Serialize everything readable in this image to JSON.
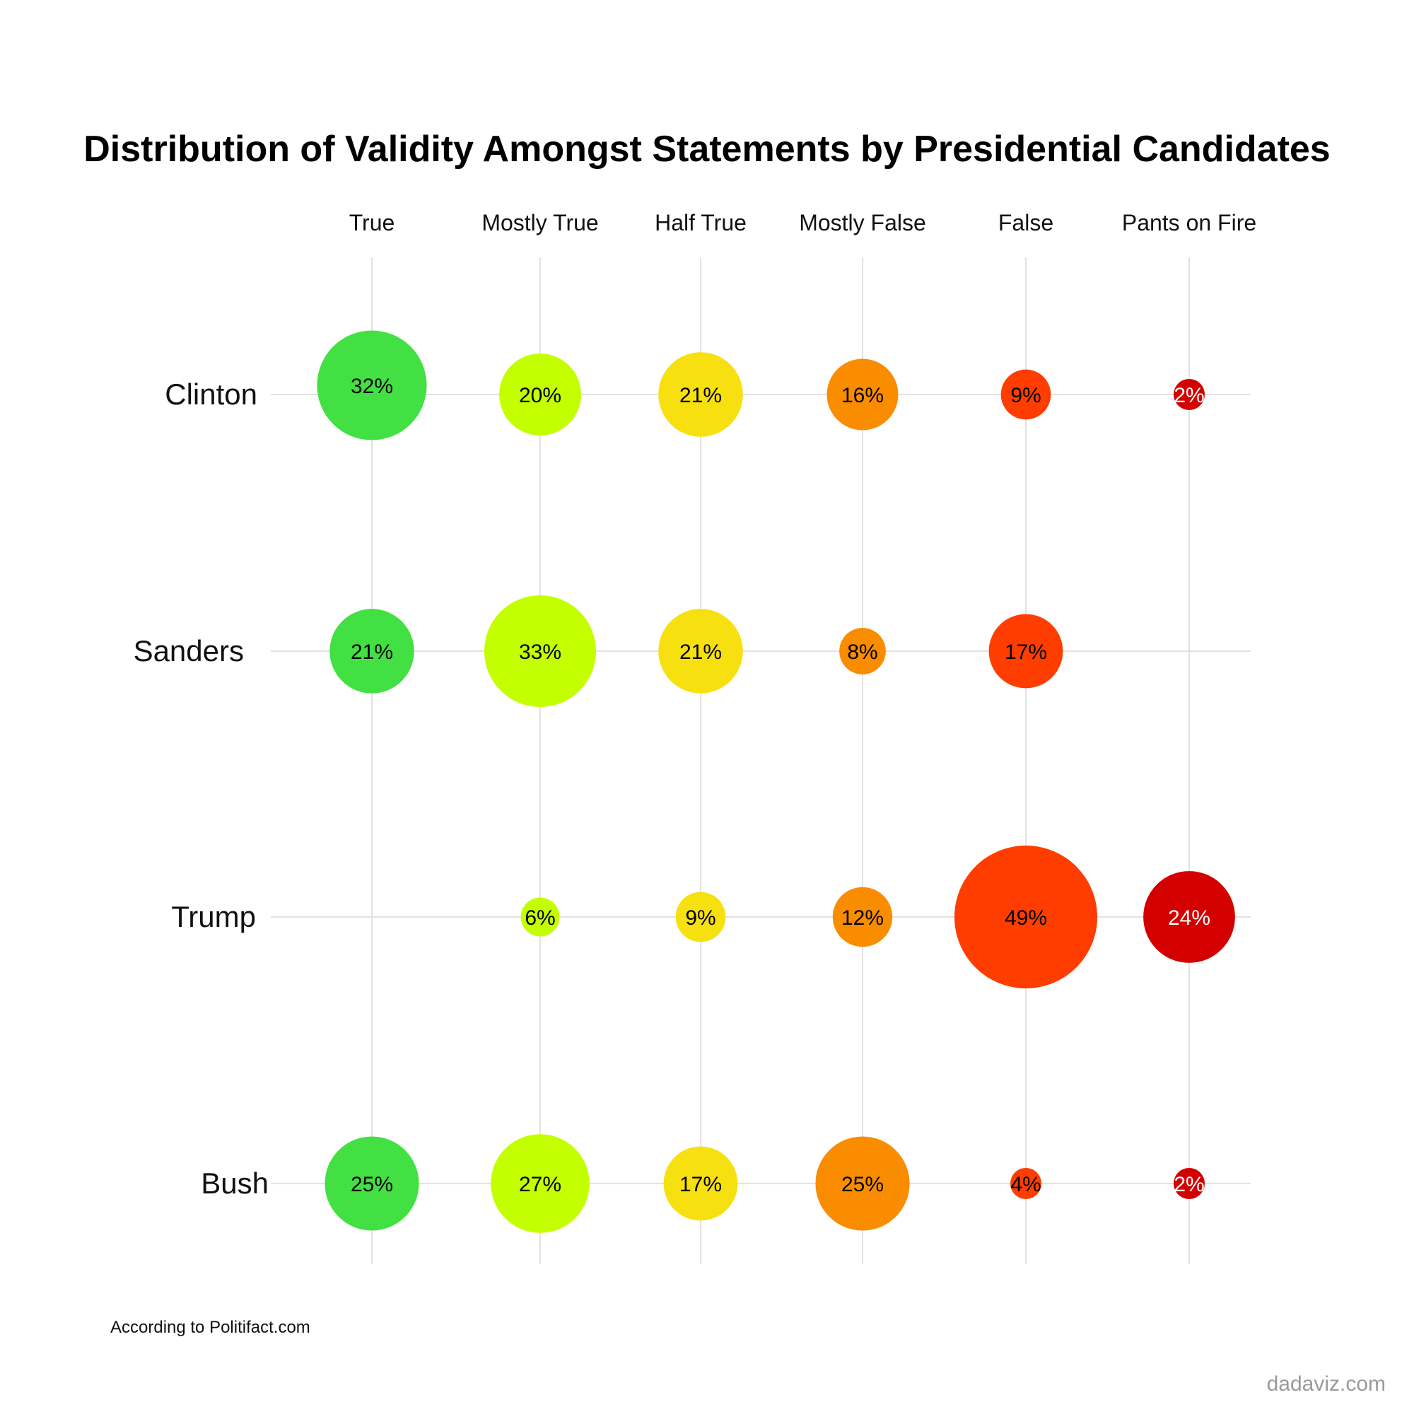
{
  "chart_data": {
    "type": "scatter",
    "subtype": "bubble-matrix",
    "title": "Distribution of Validity Amongst Statements by Presidential Candidates",
    "categories": [
      "True",
      "Mostly True",
      "Half True",
      "Mostly False",
      "False",
      "Pants on Fire"
    ],
    "rows": [
      "Clinton",
      "Sanders",
      "Trump",
      "Bush"
    ],
    "series": [
      {
        "name": "Clinton",
        "values": [
          32,
          20,
          21,
          16,
          9,
          2
        ]
      },
      {
        "name": "Sanders",
        "values": [
          21,
          33,
          21,
          8,
          17,
          null
        ]
      },
      {
        "name": "Trump",
        "values": [
          null,
          6,
          9,
          12,
          49,
          24
        ]
      },
      {
        "name": "Bush",
        "values": [
          25,
          27,
          17,
          25,
          4,
          2
        ]
      }
    ],
    "value_suffix": "%",
    "category_colors": [
      "#42e042",
      "#c4ff00",
      "#f7e00f",
      "#fa8c00",
      "#ff3d00",
      "#d40000"
    ],
    "label_colors": [
      "#000000",
      "#000000",
      "#000000",
      "#000000",
      "#000000",
      "#ffffff"
    ],
    "grid": true,
    "legend": "none",
    "xlabel": "",
    "ylabel": ""
  },
  "footer": {
    "source": "According to Politifact.com",
    "brand": "dadaviz.com"
  }
}
